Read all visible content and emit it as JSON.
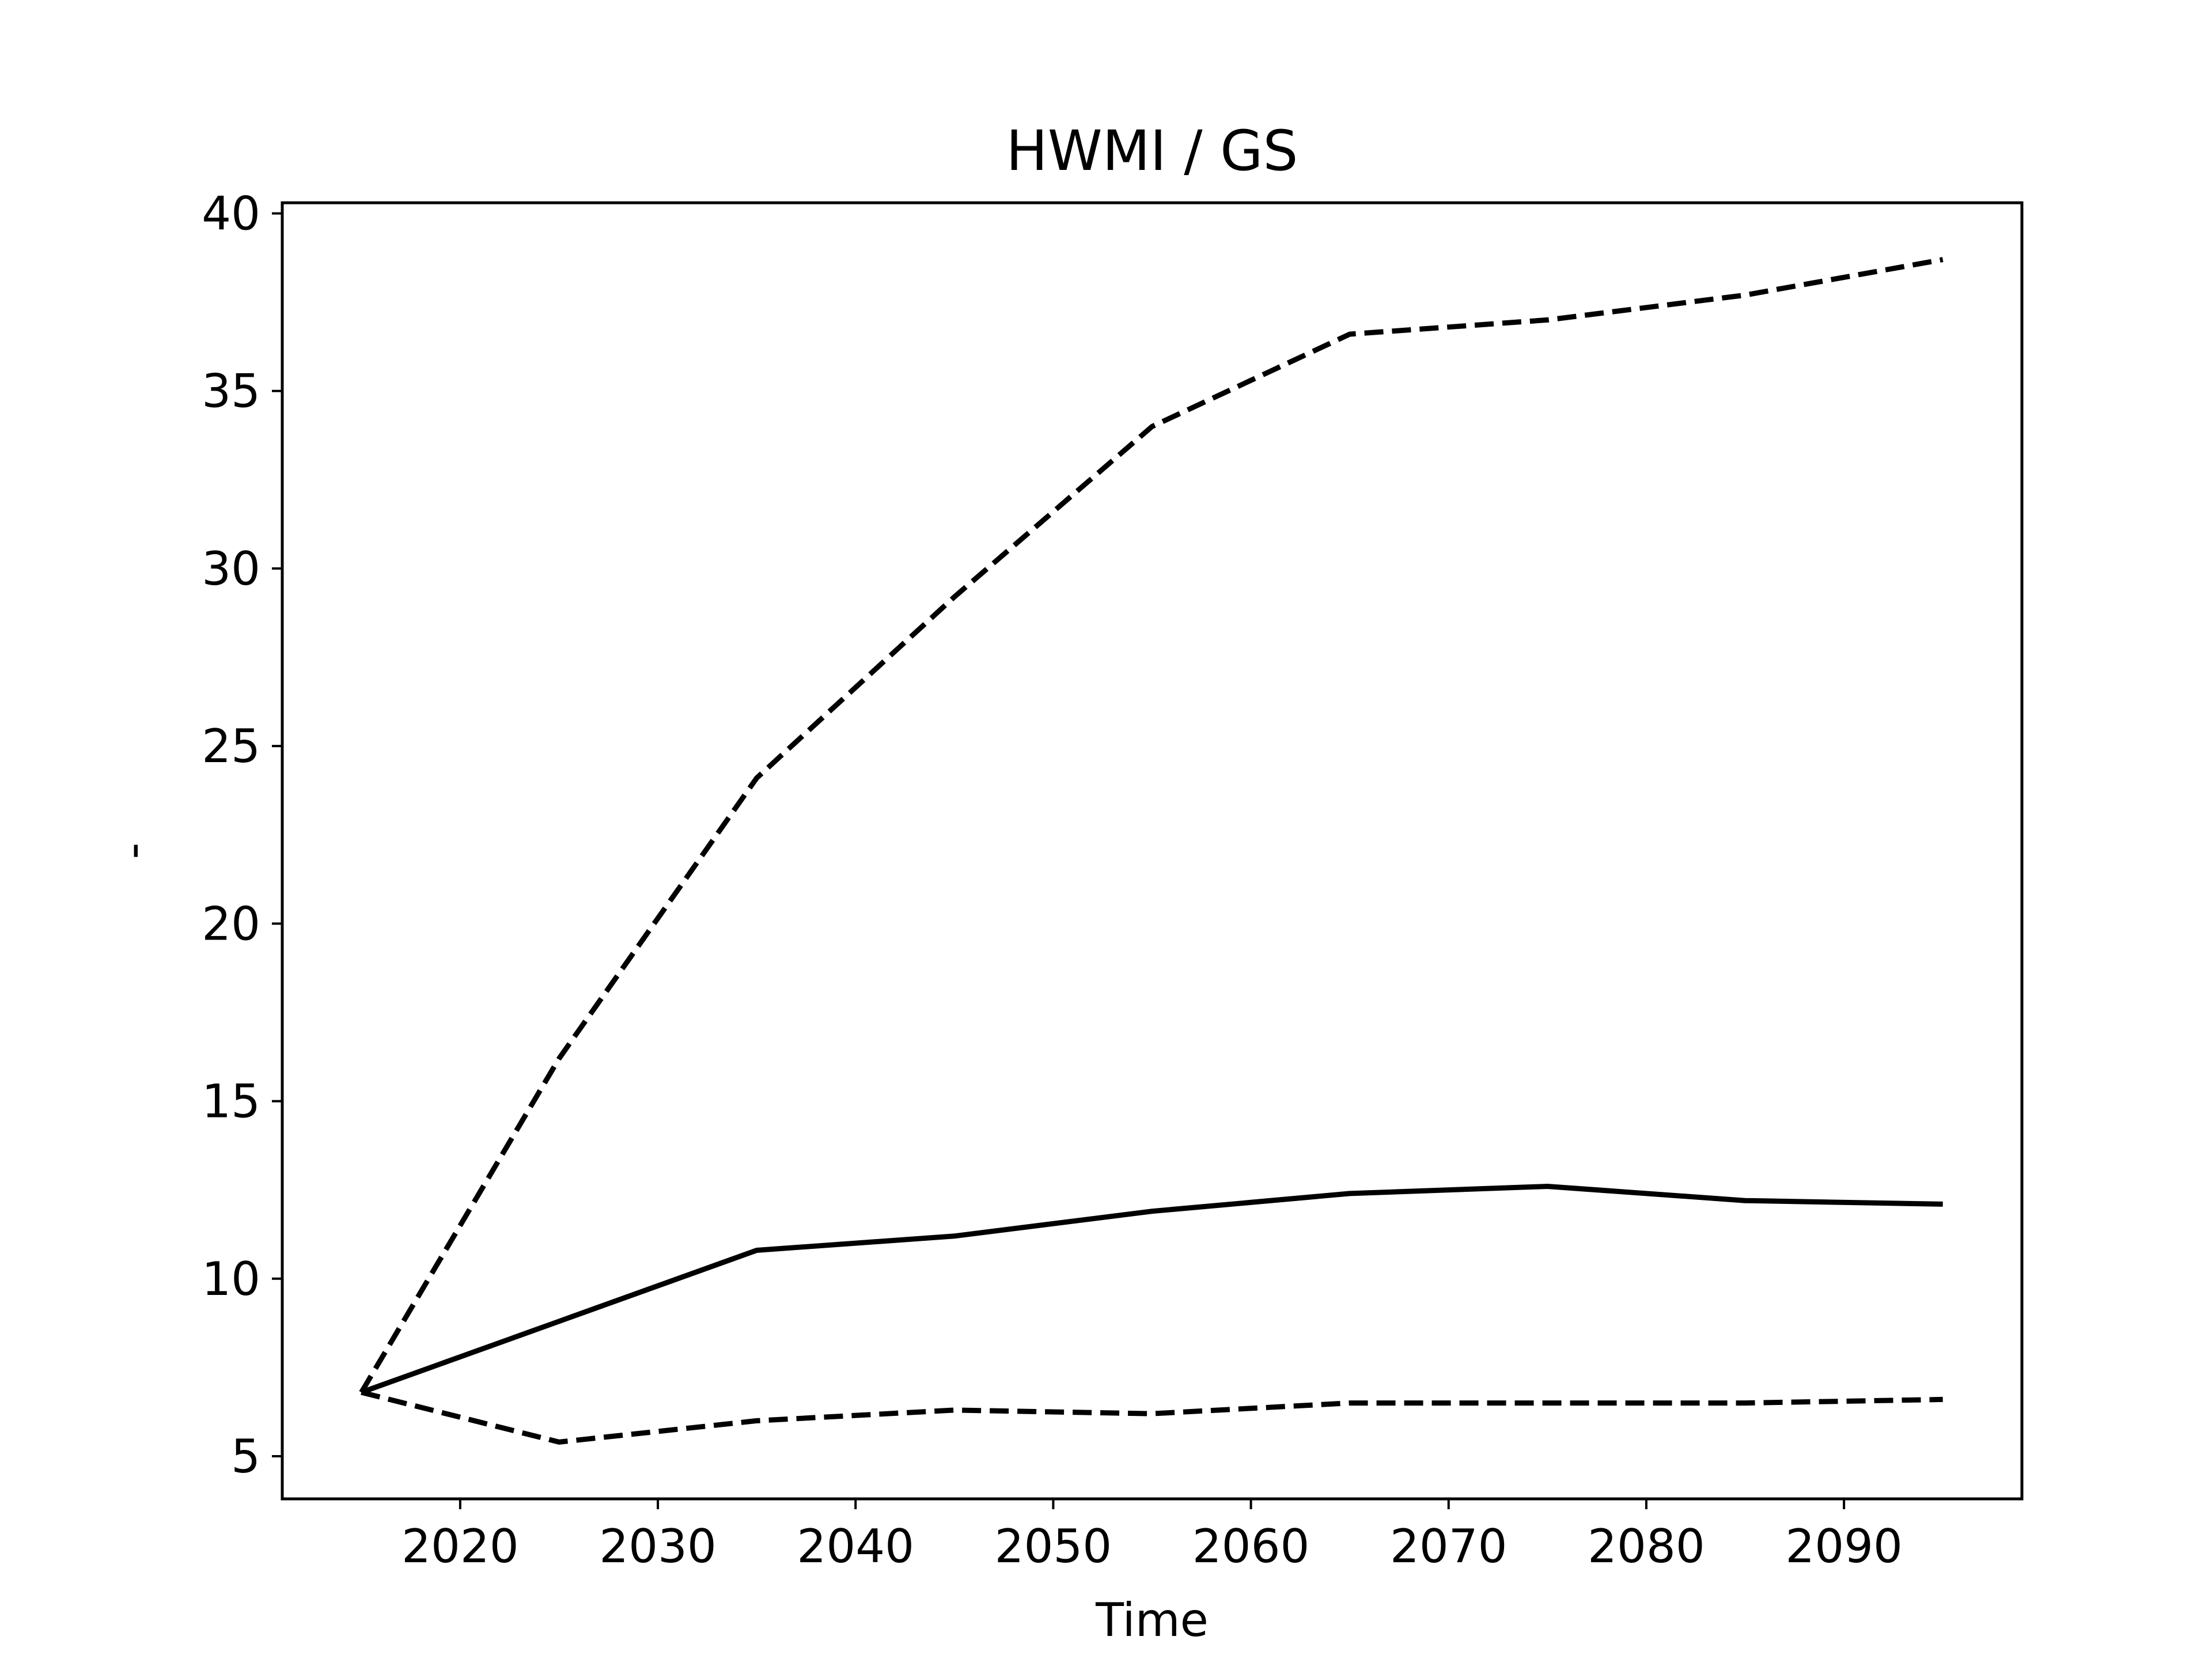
{
  "chart_data": {
    "type": "line",
    "title": "HWMI / GS",
    "xlabel": "Time",
    "ylabel": "-",
    "xlim": [
      2011,
      2099
    ],
    "ylim": [
      3.8,
      40.3
    ],
    "xticks": [
      2020,
      2030,
      2040,
      2050,
      2060,
      2070,
      2080,
      2090
    ],
    "yticks": [
      5,
      10,
      15,
      20,
      25,
      30,
      35,
      40
    ],
    "x": [
      2015,
      2025,
      2035,
      2045,
      2055,
      2065,
      2075,
      2085,
      2095
    ],
    "grid": false,
    "legend": "none",
    "series": [
      {
        "style": "dashed",
        "color": "#000000",
        "values": [
          6.8,
          16.2,
          24.1,
          29.2,
          34.0,
          36.6,
          37.0,
          37.7,
          38.7
        ]
      },
      {
        "style": "solid",
        "color": "#000000",
        "values": [
          6.8,
          8.8,
          10.8,
          11.2,
          11.9,
          12.4,
          12.6,
          12.2,
          12.1
        ]
      },
      {
        "style": "dashed",
        "color": "#000000",
        "values": [
          6.8,
          5.4,
          6.0,
          6.3,
          6.2,
          6.5,
          6.5,
          6.5,
          6.6
        ]
      }
    ]
  }
}
